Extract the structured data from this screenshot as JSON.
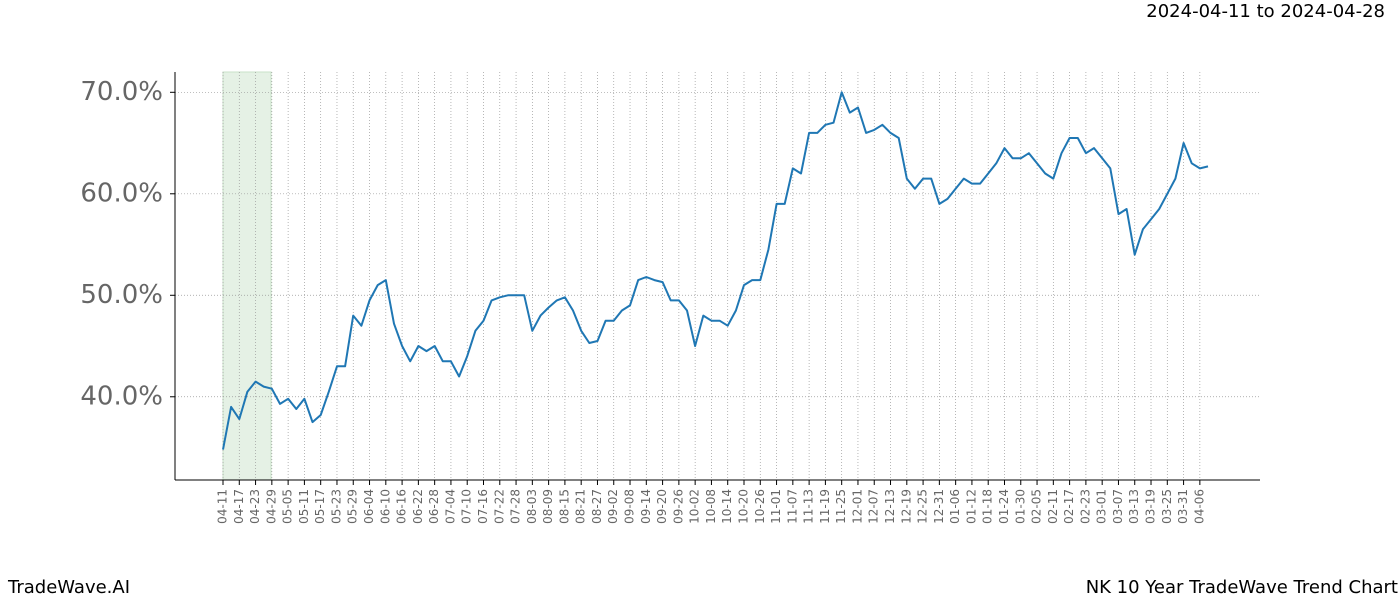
{
  "chart_data": {
    "type": "line",
    "title": "2024-04-11 to 2024-04-28",
    "footer_left": "TradeWave.AI",
    "footer_right": "NK 10 Year TradeWave Trend Chart",
    "categories": [
      "04-11",
      null,
      "04-17",
      null,
      "04-23",
      null,
      "04-29",
      null,
      "05-05",
      null,
      "05-11",
      null,
      "05-17",
      null,
      "05-23",
      null,
      "05-29",
      null,
      "06-04",
      null,
      "06-10",
      null,
      "06-16",
      null,
      "06-22",
      null,
      "06-28",
      null,
      "07-04",
      null,
      "07-10",
      null,
      "07-16",
      null,
      "07-22",
      null,
      "07-28",
      null,
      "08-03",
      null,
      "08-09",
      null,
      "08-15",
      null,
      "08-21",
      null,
      "08-27",
      null,
      "09-02",
      null,
      "09-08",
      null,
      "09-14",
      null,
      "09-20",
      null,
      "09-26",
      null,
      "10-02",
      null,
      "10-08",
      null,
      "10-14",
      null,
      "10-20",
      null,
      "10-26",
      null,
      "11-01",
      null,
      "11-07",
      null,
      "11-13",
      null,
      "11-19",
      null,
      "11-25",
      null,
      "12-01",
      null,
      "12-07",
      null,
      "12-13",
      null,
      "12-19",
      null,
      "12-25",
      null,
      "12-31",
      null,
      "01-06",
      null,
      "01-12",
      null,
      "01-18",
      null,
      "01-24",
      null,
      "01-30",
      null,
      "02-05",
      null,
      "02-11",
      null,
      "02-17",
      null,
      "02-23",
      null,
      "03-01",
      null,
      "03-07",
      null,
      "03-13",
      null,
      "03-19",
      null,
      "03-25",
      null,
      "03-31",
      null,
      "04-06",
      null
    ],
    "series": [
      {
        "color": "#1f77b4",
        "values": [
          34.8,
          39.0,
          37.8,
          40.5,
          41.5,
          41.0,
          40.8,
          39.3,
          39.8,
          38.8,
          39.8,
          37.5,
          38.2,
          40.5,
          43.0,
          43.0,
          48.0,
          47.0,
          49.5,
          51.0,
          51.5,
          47.2,
          45.0,
          43.5,
          45.0,
          44.5,
          45.0,
          43.5,
          43.5,
          42.0,
          44.0,
          46.5,
          47.5,
          49.5,
          49.8,
          50.0,
          50.0,
          50.0,
          46.5,
          48.0,
          48.8,
          49.5,
          49.8,
          48.5,
          46.5,
          45.3,
          45.5,
          47.5,
          47.5,
          48.5,
          49.0,
          51.5,
          51.8,
          51.5,
          51.3,
          49.5,
          49.5,
          48.5,
          45.0,
          48.0,
          47.5,
          47.5,
          47.0,
          48.5,
          51.0,
          51.5,
          51.5,
          54.5,
          59.0,
          59.0,
          62.5,
          62.0,
          66.0,
          66.0,
          66.8,
          67.0,
          70.0,
          68.0,
          68.5,
          66.0,
          66.3,
          66.8,
          66.0,
          65.5,
          61.5,
          60.5,
          61.5,
          61.5,
          59.0,
          59.5,
          60.5,
          61.5,
          61.0,
          61.0,
          62.0,
          63.0,
          64.5,
          63.5,
          63.5,
          64.0,
          63.0,
          62.0,
          61.5,
          64.0,
          65.5,
          65.5,
          64.0,
          64.5,
          63.5,
          62.5,
          58.0,
          58.5,
          54.0,
          56.5,
          57.5,
          58.5,
          60.0,
          61.5,
          65.0,
          63.0,
          62.5,
          62.7
        ]
      }
    ],
    "ylim": [
      31.8,
      72.0
    ],
    "yticks": [
      {
        "value": 40,
        "label": "40.0%"
      },
      {
        "value": 50,
        "label": "50.0%"
      },
      {
        "value": 60,
        "label": "60.0%"
      },
      {
        "value": 70,
        "label": "70.0%"
      }
    ],
    "grid": true
  }
}
